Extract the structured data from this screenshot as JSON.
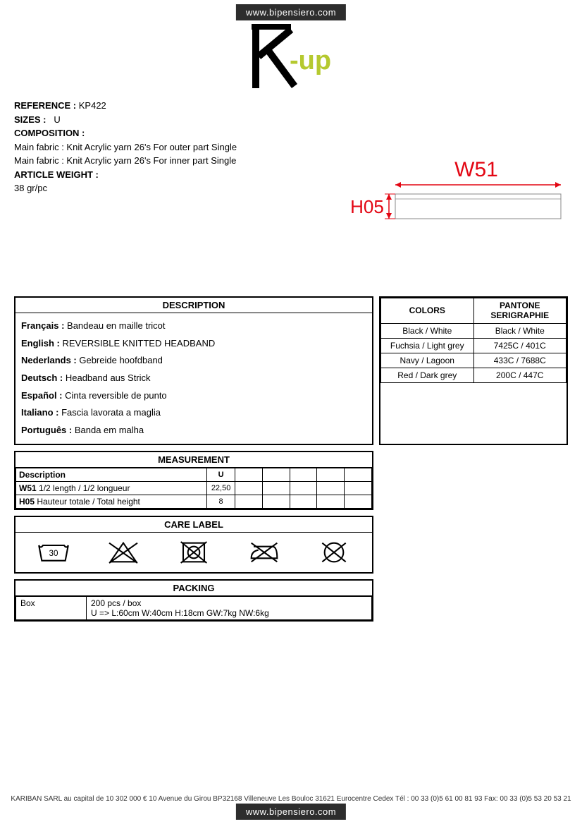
{
  "url": "www.bipensiero.com",
  "logo": {
    "letter": "K",
    "suffix": "-up",
    "k_color": "#000000",
    "up_color": "#b5c92f"
  },
  "info": {
    "reference_label": "REFERENCE :",
    "reference_value": "KP422",
    "sizes_label": "SIZES :",
    "sizes_value": "U",
    "composition_label": "COMPOSITION :",
    "composition_lines": [
      "Main fabric : Knit Acrylic yarn 26's For outer part Single",
      "Main fabric : Knit Acrylic yarn 26's For inner part Single"
    ],
    "weight_label": "ARTICLE WEIGHT :",
    "weight_value": "38 gr/pc"
  },
  "diagram": {
    "w_label": "W51",
    "h_label": "H05",
    "label_color": "#e30613",
    "label_fontsize": 28,
    "rect_stroke": "#888888"
  },
  "description": {
    "header": "DESCRIPTION",
    "items": [
      {
        "lang": "Français :",
        "text": " Bandeau en maille tricot"
      },
      {
        "lang": "English :",
        "text": " REVERSIBLE KNITTED HEADBAND"
      },
      {
        "lang": "Nederlands :",
        "text": " Gebreide hoofdband"
      },
      {
        "lang": "Deutsch :",
        "text": " Headband aus Strick"
      },
      {
        "lang": "Español :",
        "text": " Cinta reversible de punto"
      },
      {
        "lang": "Italiano :",
        "text": " Fascia lavorata a maglia"
      },
      {
        "lang": "Português :",
        "text": " Banda em malha"
      }
    ]
  },
  "colors": {
    "header_col1": "COLORS",
    "header_col2": "PANTONE SERIGRAPHIE",
    "rows": [
      {
        "c": "Black / White",
        "p": "Black / White"
      },
      {
        "c": "Fuchsia / Light grey",
        "p": "7425C / 401C"
      },
      {
        "c": "Navy / Lagoon",
        "p": "433C / 7688C"
      },
      {
        "c": "Red / Dark grey",
        "p": "200C / 447C"
      }
    ]
  },
  "measurement": {
    "header": "MEASUREMENT",
    "col_desc": "Description",
    "col_size": "U",
    "extra_cols": 5,
    "rows": [
      {
        "code": "W51",
        "desc": " 1/2 length / 1/2 longueur",
        "val": "22,50"
      },
      {
        "code": "H05",
        "desc": " Hauteur totale / Total height",
        "val": "8"
      }
    ]
  },
  "care": {
    "header": "CARE LABEL",
    "wash_temp": "30"
  },
  "packing": {
    "header": "PACKING",
    "label": "Box",
    "line1": "200 pcs / box",
    "line2": "U => L:60cm W:40cm H:18cm GW:7kg NW:6kg"
  },
  "footer": "KARIBAN SARL au capital de 10 302 000 € 10 Avenue du Girou BP32168 Villeneuve Les Bouloc 31621 Eurocentre Cedex Tél : 00 33 (0)5 61 00 81 93 Fax: 00 33 (0)5 53 20 53 21"
}
